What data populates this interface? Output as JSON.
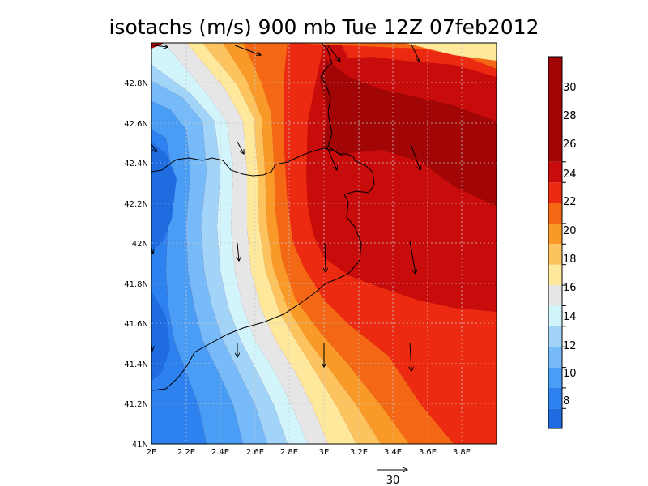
{
  "title": "isotachs (m/s) 900 mb Tue 12Z 07feb2012",
  "x_tick_labels": [
    "2E",
    "2.2E",
    "2.4E",
    "2.6E",
    "2.8E",
    "3E",
    "3.2E",
    "3.4E",
    "3.6E",
    "3.8E"
  ],
  "y_tick_labels": [
    "41N",
    "41.2N",
    "41.4N",
    "41.6N",
    "41.8N",
    "42N",
    "42.2N",
    "42.4N",
    "42.6N",
    "42.8N"
  ],
  "reference_vector_label": "30",
  "colorbar": {
    "labels": [
      "8",
      "10",
      "12",
      "14",
      "16",
      "18",
      "20",
      "22",
      "24",
      "26",
      "28",
      "30"
    ],
    "colors": [
      "#1e6ce0",
      "#2e82ef",
      "#4a9df4",
      "#76baf9",
      "#a2d4fa",
      "#d2f4fb",
      "#e6e6e6",
      "#fee89c",
      "#fdc35f",
      "#f99a28",
      "#f46815",
      "#ec2a11",
      "#c80b0b",
      "#a10505"
    ]
  },
  "chart_data": {
    "type": "heatmap",
    "title": "isotachs (m/s) 900 mb Tue 12Z 07feb2012",
    "x_range_deg_E": [
      2.0,
      4.0
    ],
    "y_range_deg_N": [
      41.0,
      43.0
    ],
    "grid": true,
    "levels_m_s": [
      8,
      10,
      12,
      14,
      16,
      18,
      20,
      22,
      24,
      26,
      28,
      30
    ],
    "description_of_field": "Wind speed lowest (about 6-10 m/s) along the western edge near 2E, increasing eastward through a narrow band near 2.6-3.0E to above 30 m/s over 3.2-3.8E between 41.6N and 42.6N; 20-24 m/s in the far north-east corner.",
    "wind_vectors": [
      {
        "lon": 2.1,
        "lat": 43.0,
        "dir": "east",
        "speed_m_s": 12
      },
      {
        "lon": 2.6,
        "lat": 42.95,
        "dir": "east-southeast",
        "speed_m_s": 16
      },
      {
        "lon": 3.0,
        "lat": 42.95,
        "dir": "south-southeast",
        "speed_m_s": 20
      },
      {
        "lon": 3.5,
        "lat": 43.0,
        "dir": "south-southeast",
        "speed_m_s": 16
      },
      {
        "lon": 2.0,
        "lat": 42.55,
        "dir": "south-southeast",
        "speed_m_s": 8
      },
      {
        "lon": 2.5,
        "lat": 42.55,
        "dir": "south-southeast",
        "speed_m_s": 12
      },
      {
        "lon": 3.0,
        "lat": 42.55,
        "dir": "south-southeast",
        "speed_m_s": 22
      },
      {
        "lon": 3.5,
        "lat": 42.55,
        "dir": "south-southeast",
        "speed_m_s": 24
      },
      {
        "lon": 2.5,
        "lat": 42.0,
        "dir": "south",
        "speed_m_s": 14
      },
      {
        "lon": 3.0,
        "lat": 42.0,
        "dir": "south",
        "speed_m_s": 24
      },
      {
        "lon": 3.5,
        "lat": 42.0,
        "dir": "south",
        "speed_m_s": 28
      },
      {
        "lon": 2.0,
        "lat": 41.55,
        "dir": "south",
        "speed_m_s": 6
      },
      {
        "lon": 2.5,
        "lat": 41.55,
        "dir": "south",
        "speed_m_s": 12
      },
      {
        "lon": 3.0,
        "lat": 41.55,
        "dir": "south",
        "speed_m_s": 24
      },
      {
        "lon": 3.5,
        "lat": 41.55,
        "dir": "south",
        "speed_m_s": 28
      }
    ],
    "reference_vector_m_s": 30
  }
}
